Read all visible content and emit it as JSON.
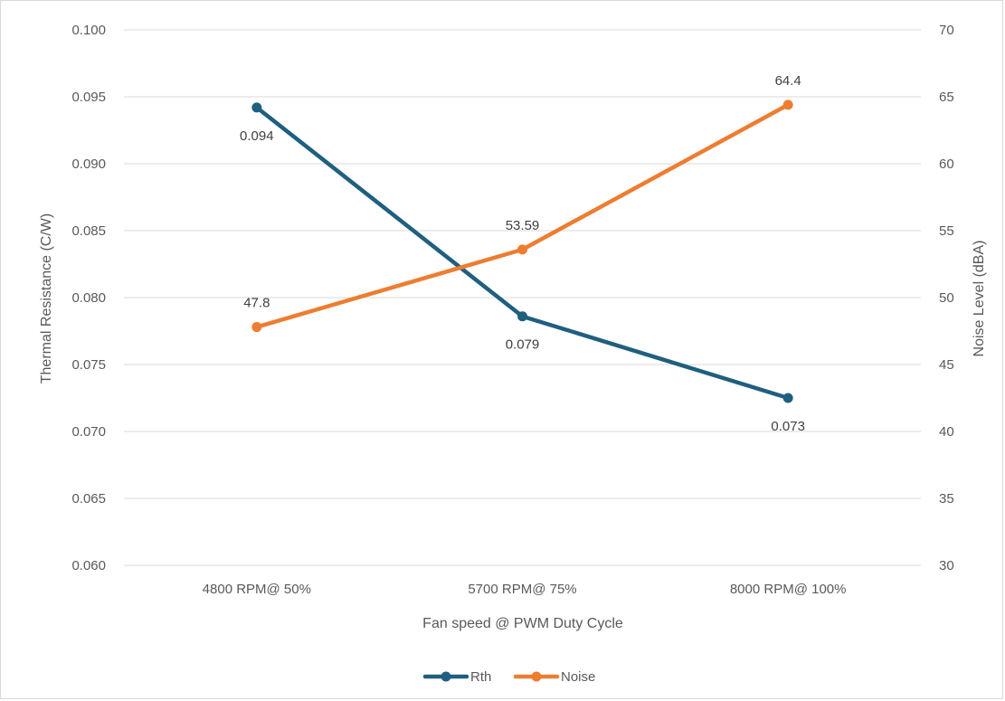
{
  "chart_data": {
    "type": "line",
    "categories": [
      "4800 RPM@ 50%",
      "5700 RPM@ 75%",
      "8000 RPM@ 100%"
    ],
    "xlabel": "Fan speed @ PWM Duty Cycle",
    "ylabel": "Thermal Resistance (C/W)",
    "y2label": "Noise Level (dBA)",
    "ylim": [
      0.06,
      0.1
    ],
    "y_ticks": [
      "0.060",
      "0.065",
      "0.070",
      "0.075",
      "0.080",
      "0.085",
      "0.090",
      "0.095",
      "0.100"
    ],
    "y2lim": [
      30,
      70
    ],
    "y2_ticks": [
      "30",
      "35",
      "40",
      "45",
      "50",
      "55",
      "60",
      "65",
      "70"
    ],
    "grid": true,
    "legend_position": "bottom",
    "series": [
      {
        "name": "Rth",
        "axis": "left",
        "values": [
          0.0942,
          0.0786,
          0.0725
        ],
        "labels": [
          "0.094",
          "0.079",
          "0.073"
        ],
        "color": "#1f5f7f"
      },
      {
        "name": "Noise",
        "axis": "right",
        "values": [
          47.8,
          53.59,
          64.4
        ],
        "labels": [
          "47.8",
          "53.59",
          "64.4"
        ],
        "color": "#ed7d31"
      }
    ]
  }
}
